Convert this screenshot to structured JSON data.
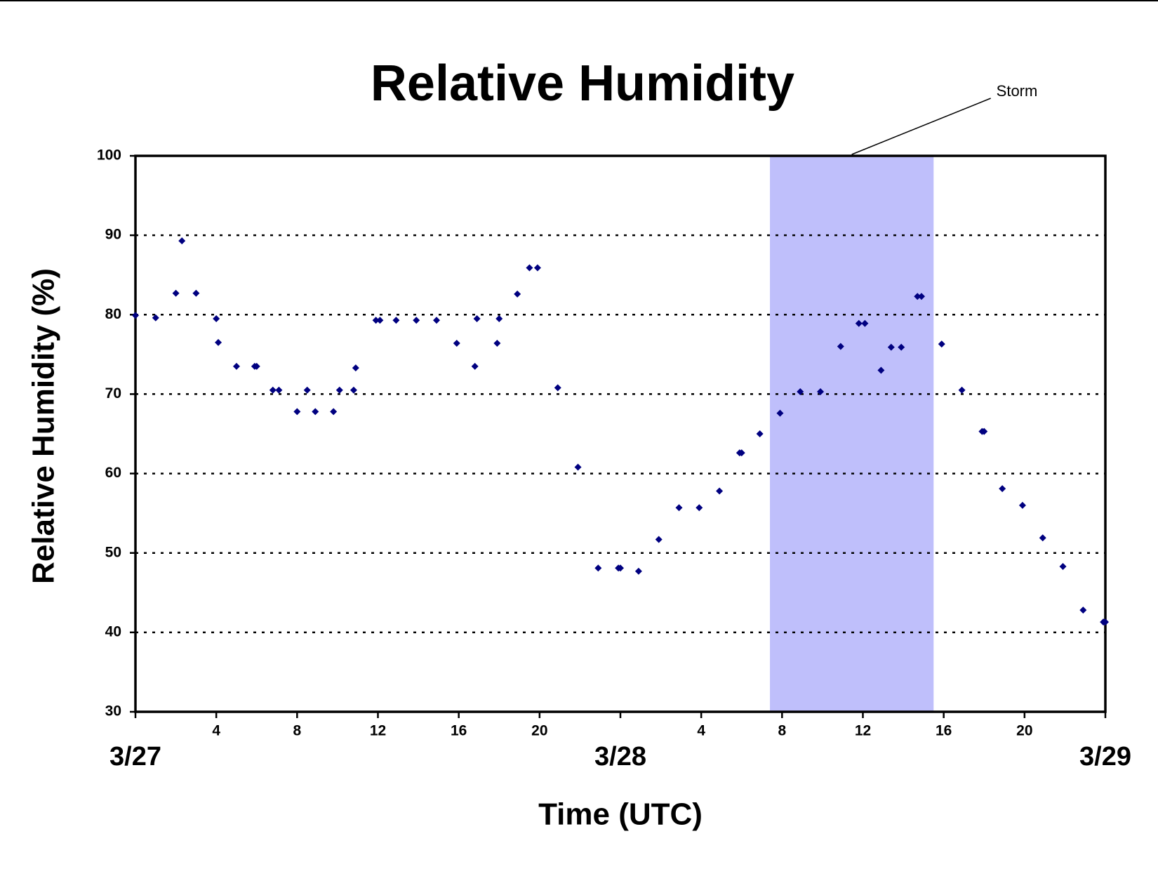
{
  "chart_data": {
    "type": "scatter",
    "title": "Relative Humidity",
    "x_label": "Time (UTC)",
    "y_label": "Relative Humidity (%)",
    "color": "#000080",
    "x": [
      0,
      1,
      2,
      2.3,
      3,
      4,
      4.1,
      5,
      5.9,
      6,
      6.8,
      7.1,
      8,
      8.5,
      8.9,
      9.8,
      10.1,
      10.8,
      10.9,
      11.9,
      12.1,
      12.9,
      13.9,
      14.9,
      15.9,
      16.8,
      16.9,
      17.9,
      18,
      18.9,
      19.5,
      19.9,
      20.9,
      21.9,
      22.9,
      23.9,
      24,
      24.9,
      25.9,
      26.9,
      27.9,
      28.9,
      29.9,
      30,
      30.9,
      31.9,
      32.9,
      33.9,
      34.9,
      35.8,
      36.1,
      36.9,
      37.4,
      37.9,
      38.7,
      38.9,
      39.9,
      40.9,
      41.9,
      42,
      42.9,
      43.9,
      44.9,
      45.9,
      46.9,
      47.9,
      48
    ],
    "values": [
      79.9,
      79.6,
      82.7,
      89.3,
      82.7,
      79.5,
      76.5,
      73.5,
      73.5,
      73.5,
      70.5,
      70.5,
      67.8,
      70.5,
      67.8,
      67.8,
      70.5,
      70.5,
      73.3,
      79.3,
      79.3,
      79.3,
      79.3,
      79.3,
      76.4,
      73.5,
      79.5,
      76.4,
      79.5,
      82.6,
      85.9,
      85.9,
      70.8,
      60.8,
      48.1,
      48.1,
      48.1,
      47.7,
      51.7,
      55.7,
      55.7,
      57.8,
      62.6,
      62.6,
      65,
      67.6,
      70.3,
      70.3,
      76,
      78.9,
      78.9,
      73,
      75.9,
      75.9,
      82.3,
      82.3,
      76.3,
      70.5,
      65.3,
      65.3,
      58.1,
      56,
      51.9,
      48.3,
      42.8,
      41.3,
      41.3
    ],
    "xlim": [
      0,
      48
    ],
    "ylim": [
      30,
      100
    ],
    "xticks": [
      {
        "value": 0,
        "label": "3/27"
      },
      4,
      8,
      12,
      16,
      20,
      {
        "value": 24,
        "label": "3/28"
      },
      {
        "value": 28,
        "label": "4"
      },
      {
        "value": 32,
        "label": "8"
      },
      {
        "value": 36,
        "label": "12"
      },
      {
        "value": 40,
        "label": "16"
      },
      {
        "value": 44,
        "label": "20"
      },
      {
        "value": 48,
        "label": "3/29"
      }
    ],
    "yticks": [
      30,
      40,
      50,
      60,
      70,
      80,
      90,
      100
    ],
    "grid": true,
    "annotations": [
      {
        "text": "Storm",
        "x0": 31.4,
        "x1": 39.5,
        "color": "#bfbffb"
      }
    ]
  }
}
